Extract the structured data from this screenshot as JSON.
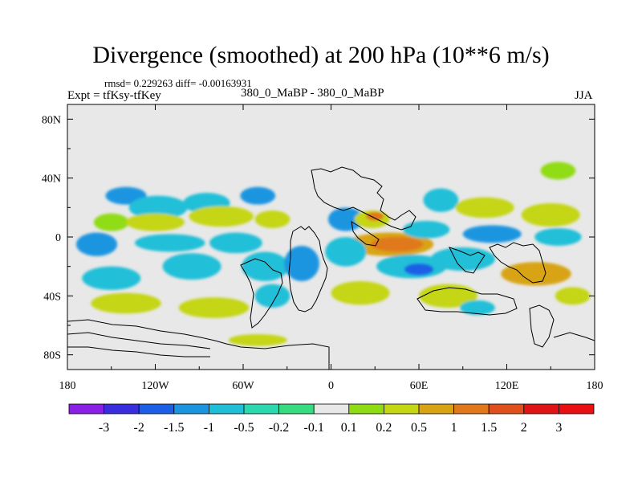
{
  "chart_data": {
    "type": "heatmap",
    "title": "Divergence (smoothed) at 200 hPa (10**6 m/s)",
    "stats_line": "rmsd= 0.229263 diff= -0.00163931",
    "expt_label": "Expt = tfKsy-tfKey",
    "center_label": "380_0_MaBP - 380_0_MaBP",
    "season": "JJA",
    "xlim": [
      -180,
      180
    ],
    "ylim": [
      -90,
      90
    ],
    "x_ticks": [
      {
        "value": -180,
        "label": "180"
      },
      {
        "value": -120,
        "label": "120W"
      },
      {
        "value": -60,
        "label": "60W"
      },
      {
        "value": 0,
        "label": "0"
      },
      {
        "value": 60,
        "label": "60E"
      },
      {
        "value": 120,
        "label": "120E"
      },
      {
        "value": 180,
        "label": "180"
      }
    ],
    "y_ticks": [
      {
        "value": 80,
        "label": "80N"
      },
      {
        "value": 40,
        "label": "40N"
      },
      {
        "value": 0,
        "label": "0"
      },
      {
        "value": -40,
        "label": "40S"
      },
      {
        "value": -80,
        "label": "80S"
      }
    ],
    "colorbar": {
      "labels": [
        "-3",
        "-2",
        "-1.5",
        "-1",
        "-0.5",
        "-0.2",
        "-0.1",
        "0.1",
        "0.2",
        "0.5",
        "1",
        "1.5",
        "2",
        "3"
      ],
      "colors": [
        "#8a1fe6",
        "#3a2de0",
        "#1c5fe6",
        "#1c95e0",
        "#20bfd8",
        "#2cd8b0",
        "#38dc80",
        "#e8e8e8",
        "#90dc14",
        "#c4d614",
        "#d8a414",
        "#e0781c",
        "#e0501c",
        "#e01414",
        "#e81010"
      ]
    },
    "field_blobs": [
      {
        "lon": -140,
        "lat": 28,
        "rx": 14,
        "ry": 6,
        "level": 3
      },
      {
        "lon": -118,
        "lat": 20,
        "rx": 20,
        "ry": 8,
        "level": 4
      },
      {
        "lon": -85,
        "lat": 23,
        "rx": 16,
        "ry": 7,
        "level": 4
      },
      {
        "lon": -50,
        "lat": 28,
        "rx": 12,
        "ry": 6,
        "level": 3
      },
      {
        "lon": -150,
        "lat": 10,
        "rx": 12,
        "ry": 6,
        "level": 8
      },
      {
        "lon": -120,
        "lat": 10,
        "rx": 20,
        "ry": 6,
        "level": 9
      },
      {
        "lon": -75,
        "lat": 14,
        "rx": 22,
        "ry": 7,
        "level": 9
      },
      {
        "lon": -40,
        "lat": 12,
        "rx": 12,
        "ry": 6,
        "level": 9
      },
      {
        "lon": -160,
        "lat": -5,
        "rx": 14,
        "ry": 8,
        "level": 3
      },
      {
        "lon": -110,
        "lat": -4,
        "rx": 24,
        "ry": 6,
        "level": 4
      },
      {
        "lon": -65,
        "lat": -4,
        "rx": 18,
        "ry": 7,
        "level": 4
      },
      {
        "lon": -150,
        "lat": -28,
        "rx": 20,
        "ry": 8,
        "level": 4
      },
      {
        "lon": -95,
        "lat": -20,
        "rx": 20,
        "ry": 9,
        "level": 4
      },
      {
        "lon": -45,
        "lat": -20,
        "rx": 16,
        "ry": 10,
        "level": 4
      },
      {
        "lon": -20,
        "lat": -18,
        "rx": 12,
        "ry": 12,
        "level": 3
      },
      {
        "lon": -140,
        "lat": -45,
        "rx": 24,
        "ry": 7,
        "level": 9
      },
      {
        "lon": -80,
        "lat": -48,
        "rx": 24,
        "ry": 7,
        "level": 9
      },
      {
        "lon": -40,
        "lat": -40,
        "rx": 12,
        "ry": 8,
        "level": 4
      },
      {
        "lon": -50,
        "lat": -70,
        "rx": 20,
        "ry": 4,
        "level": 9
      },
      {
        "lon": 10,
        "lat": 12,
        "rx": 12,
        "ry": 8,
        "level": 3
      },
      {
        "lon": 28,
        "lat": 12,
        "rx": 12,
        "ry": 6,
        "level": 9
      },
      {
        "lon": 30,
        "lat": 14,
        "rx": 6,
        "ry": 3,
        "level": 11
      },
      {
        "lon": 40,
        "lat": -5,
        "rx": 30,
        "ry": 8,
        "level": 10
      },
      {
        "lon": 45,
        "lat": -5,
        "rx": 18,
        "ry": 5,
        "level": 11
      },
      {
        "lon": 10,
        "lat": -10,
        "rx": 14,
        "ry": 10,
        "level": 4
      },
      {
        "lon": 55,
        "lat": -20,
        "rx": 24,
        "ry": 8,
        "level": 4
      },
      {
        "lon": 60,
        "lat": -22,
        "rx": 10,
        "ry": 4,
        "level": 2
      },
      {
        "lon": 20,
        "lat": -38,
        "rx": 20,
        "ry": 8,
        "level": 9
      },
      {
        "lon": 75,
        "lat": 25,
        "rx": 12,
        "ry": 8,
        "level": 4
      },
      {
        "lon": 65,
        "lat": 5,
        "rx": 16,
        "ry": 6,
        "level": 4
      },
      {
        "lon": 105,
        "lat": 20,
        "rx": 20,
        "ry": 7,
        "level": 9
      },
      {
        "lon": 150,
        "lat": 15,
        "rx": 20,
        "ry": 8,
        "level": 9
      },
      {
        "lon": 155,
        "lat": 45,
        "rx": 12,
        "ry": 6,
        "level": 8
      },
      {
        "lon": 110,
        "lat": 2,
        "rx": 20,
        "ry": 6,
        "level": 3
      },
      {
        "lon": 90,
        "lat": -15,
        "rx": 22,
        "ry": 8,
        "level": 4
      },
      {
        "lon": 140,
        "lat": -25,
        "rx": 24,
        "ry": 8,
        "level": 10
      },
      {
        "lon": 80,
        "lat": -40,
        "rx": 20,
        "ry": 8,
        "level": 9
      },
      {
        "lon": 100,
        "lat": -48,
        "rx": 12,
        "ry": 5,
        "level": 4
      },
      {
        "lon": 155,
        "lat": 0,
        "rx": 16,
        "ry": 6,
        "level": 4
      },
      {
        "lon": 165,
        "lat": -40,
        "rx": 12,
        "ry": 6,
        "level": 9
      }
    ]
  }
}
